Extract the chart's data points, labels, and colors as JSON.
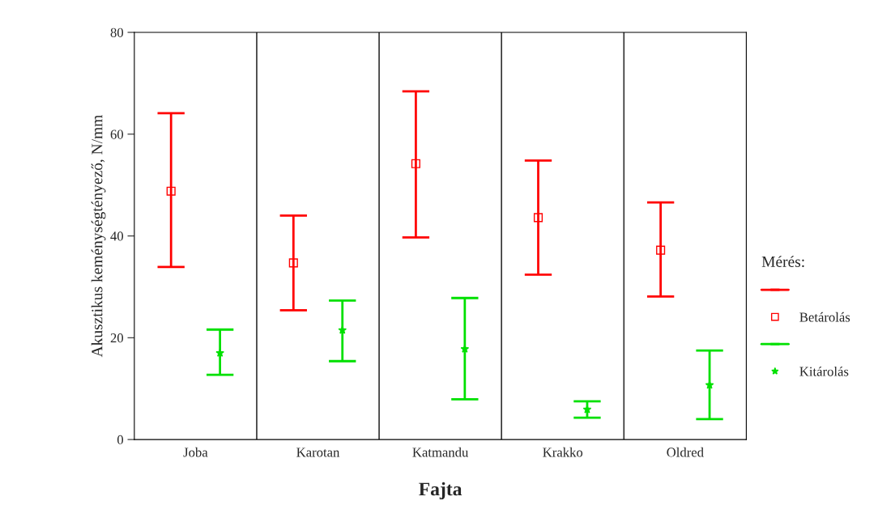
{
  "chart_data": {
    "type": "scatter",
    "xlabel": "Fajta",
    "ylabel": "Akusztikus keménységtényező, N/mm",
    "legend_title": "Mérés:",
    "legend": "right",
    "categories": [
      "Joba",
      "Karotan",
      "Katmandu",
      "Krakko",
      "Oldred"
    ],
    "series": [
      {
        "name": "Betárolás",
        "color": "#ff0000",
        "marker": "square",
        "values": [
          48.8,
          34.7,
          54.2,
          43.6,
          37.2
        ],
        "errors": [
          [
            33.9,
            64.1
          ],
          [
            25.4,
            44.0
          ],
          [
            39.7,
            68.4
          ],
          [
            32.4,
            54.8
          ],
          [
            28.1,
            46.6
          ]
        ]
      },
      {
        "name": "Kitárolás",
        "color": "#00e000",
        "marker": "star",
        "values": [
          17.0,
          21.5,
          17.8,
          5.9,
          10.7
        ],
        "errors": [
          [
            12.7,
            21.6
          ],
          [
            15.4,
            27.3
          ],
          [
            7.9,
            27.8
          ],
          [
            4.3,
            7.5
          ],
          [
            4.0,
            17.5
          ]
        ]
      }
    ],
    "ylim": [
      0,
      80
    ],
    "yticks": [
      0,
      20,
      40,
      60,
      80
    ],
    "grid": "x"
  }
}
